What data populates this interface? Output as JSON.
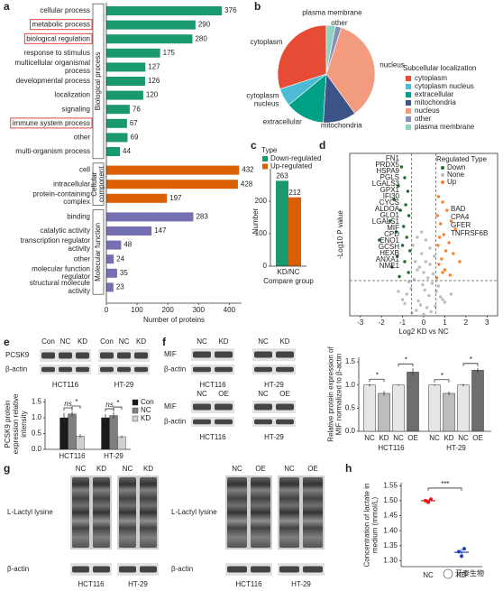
{
  "panels": [
    "a",
    "b",
    "c",
    "d",
    "e",
    "f",
    "g",
    "h"
  ],
  "chart_data": [
    {
      "type": "hbar",
      "xlabel": "Number of proteins",
      "xlim": [
        0,
        440
      ],
      "xticks": [
        0,
        100,
        200,
        300,
        400
      ],
      "groups": [
        {
          "name": "Biological process",
          "color": "#1a9a6c",
          "categories": [
            "cellular process",
            "metabolic process",
            "biological regulation",
            "response to stimulus",
            "multicellular organismal\nprocess",
            "developmental process",
            "localization",
            "signaling",
            "immune system process",
            "other",
            "multi-organism process"
          ],
          "values": [
            376,
            290,
            280,
            175,
            127,
            126,
            120,
            76,
            67,
            69,
            44
          ],
          "highlighted": [
            false,
            true,
            true,
            false,
            false,
            false,
            false,
            false,
            true,
            false,
            false
          ]
        },
        {
          "name": "Cellular\ncomponent",
          "color": "#d95f02",
          "categories": [
            "cell",
            "intracellular",
            "protein-containing\ncomplex"
          ],
          "values": [
            432,
            428,
            197
          ]
        },
        {
          "name": "Molecular function",
          "color": "#7570b3",
          "categories": [
            "binding",
            "catalytic activity",
            "transcription regulator\nactivity",
            "other",
            "molecular function\nregulator",
            "structural molecule\nactivity"
          ],
          "values": [
            283,
            147,
            48,
            24,
            35,
            23
          ]
        }
      ]
    },
    {
      "type": "pie",
      "title": "Subcellular localization",
      "categories": [
        "cytoplasm",
        "cytoplasm nucleus",
        "extracellular",
        "mitochondria",
        "nucleus",
        "other",
        "plasma membrane"
      ],
      "values": [
        30,
        6,
        13,
        11,
        35,
        2,
        3
      ],
      "colors": [
        "#e64b35",
        "#4dbbd5",
        "#00a087",
        "#3c5488",
        "#f39b7f",
        "#8491b4",
        "#91d1c2"
      ]
    },
    {
      "type": "bar",
      "legend_title": "Type",
      "categories": [
        "KD/NC"
      ],
      "xlabel": "Compare group",
      "ylabel": "Number",
      "series": [
        {
          "name": "Down-regulated",
          "color": "#1a9a6c",
          "values": [
            263
          ]
        },
        {
          "name": "Up-regulated",
          "color": "#d95f02",
          "values": [
            212
          ]
        }
      ],
      "ylim": [
        0,
        300
      ],
      "yticks": [
        0,
        100,
        200
      ]
    },
    {
      "type": "scatter",
      "legend_title": "Regulated Type",
      "xlabel": "Log2 KD vs NC",
      "ylabel": "-Log10 P value",
      "xlim": [
        -3.5,
        3.5
      ],
      "xticks": [
        -3,
        -2,
        -1,
        0,
        1,
        2,
        3
      ],
      "ylim": [
        0,
        6
      ],
      "thresholds": {
        "x": [
          -0.58,
          0.58
        ],
        "y": 1.3
      },
      "series": [
        {
          "name": "Down",
          "color": "#1e6b2a",
          "x": [
            -1.05,
            -0.9,
            -1.2,
            -0.75,
            -1.4,
            -0.85,
            -1.1,
            -0.7,
            -1.6,
            -0.95,
            -1.3,
            -0.8,
            -2.1,
            -1.0,
            -0.65,
            -1.25,
            -0.9,
            -1.5,
            -0.72,
            -1.15
          ],
          "values": [
            5.5,
            5.1,
            4.8,
            4.6,
            4.3,
            4.1,
            3.9,
            3.7,
            3.5,
            3.3,
            3.1,
            2.9,
            2.8,
            2.6,
            2.4,
            2.2,
            2.0,
            1.8,
            1.6,
            1.45
          ]
        },
        {
          "name": "None",
          "color": "#bdbdbd",
          "x": [
            -0.5,
            -0.3,
            -0.1,
            0.1,
            0.3,
            0.5,
            -0.4,
            -0.2,
            0,
            0.2,
            0.4,
            -0.6,
            0.6,
            -0.8,
            0.8,
            -1.0,
            1.0,
            -0.15,
            0.15,
            -0.35,
            0.35,
            -0.55,
            0.55,
            -0.25,
            0.25,
            0.05,
            -0.05,
            -0.45,
            0.45,
            -0.7,
            0.7,
            -1.2,
            1.3,
            -0.9,
            0.9,
            0,
            -0.1,
            0.1,
            -0.3,
            0.3
          ],
          "values": [
            2.6,
            2.9,
            3.1,
            2.8,
            2.5,
            2.2,
            2.0,
            1.8,
            1.6,
            1.4,
            1.2,
            1.0,
            0.9,
            0.8,
            0.7,
            0.6,
            0.5,
            0.4,
            0.3,
            0.2,
            0.15,
            0.1,
            0.35,
            0.55,
            0.75,
            0.95,
            1.15,
            1.35,
            1.55,
            1.25,
            1.1,
            0.9,
            0.8,
            0.45,
            0.6,
            0.05,
            2.3,
            2.0,
            1.7,
            1.9
          ]
        },
        {
          "name": "Up",
          "color": "#ff7f2a",
          "x": [
            0.7,
            0.9,
            1.1,
            0.65,
            1.3,
            0.8,
            1.5,
            0.95,
            0.75,
            1.2,
            0.68,
            1.05,
            1.4,
            0.85,
            1.7,
            0.72,
            1.0,
            0.9,
            1.25,
            0.62
          ],
          "values": [
            4.4,
            4.2,
            3.9,
            3.7,
            3.5,
            3.4,
            3.2,
            3.0,
            2.9,
            2.7,
            2.6,
            2.4,
            2.3,
            2.1,
            2.0,
            1.9,
            1.7,
            1.6,
            1.5,
            1.4
          ]
        }
      ],
      "down_labels": [
        "FN1",
        "PRDX5",
        "HSPA9",
        "PGLS",
        "LGALS3",
        "GPX1",
        "IFI30",
        "CYCS",
        "ALDOA",
        "GLO1",
        "LGALS1",
        "MIF",
        "CPD",
        "ENO1",
        "GCSH",
        "HEXB",
        "ANXA1",
        "NME1"
      ],
      "up_labels": [
        "BAD",
        "CPA4",
        "GFER",
        "TNFRSF6B"
      ]
    },
    {
      "type": "grouped-bar",
      "categories": [
        "HCT116",
        "HT-29"
      ],
      "ylabel": "PCSK9 protein\nexpression relative\nintensity",
      "series": [
        {
          "name": "Con",
          "color": "#1a1a1a",
          "values": [
            1.0,
            1.0
          ],
          "errors": [
            0.15,
            0.12
          ]
        },
        {
          "name": "NC",
          "color": "#7f7f7f",
          "values": [
            1.12,
            1.07
          ],
          "errors": [
            0.08,
            0.1
          ]
        },
        {
          "name": "KD",
          "color": "#d0d0d0",
          "values": [
            0.42,
            0.4
          ],
          "errors": [
            0.06,
            0.04
          ]
        }
      ],
      "annotations": [
        [
          "ns",
          "*"
        ],
        [
          "ns",
          "*"
        ]
      ],
      "ylim": [
        0,
        1.6
      ],
      "yticks": [
        {
          "value": 0,
          "label": "0.0"
        },
        0.5,
        {
          "value": 1,
          "label": "1.0"
        },
        1.5
      ]
    },
    {
      "type": "bar",
      "categories": [
        "NC",
        "KD",
        "NC",
        "OE",
        "NC",
        "KD",
        "NC",
        "OE"
      ],
      "groups": [
        "HCT116",
        "HT-29"
      ],
      "values": [
        1.0,
        0.82,
        1.0,
        1.28,
        1.0,
        0.82,
        1.0,
        1.32
      ],
      "errors": [
        0.03,
        0.05,
        0.02,
        0.08,
        0.02,
        0.04,
        0.03,
        0.05
      ],
      "colors": [
        "#e6e6e6",
        "#bdbdbd",
        "#e6e6e6",
        "#6e6e6e",
        "#e6e6e6",
        "#bdbdbd",
        "#e6e6e6",
        "#6e6e6e"
      ],
      "annotations": [
        "*",
        "*",
        "*",
        "*"
      ],
      "ylabel": "Relative protein expression of\nMIF normalized to β-actin",
      "ylim": [
        0,
        1.6
      ],
      "yticks": [
        {
          "value": 0,
          "label": "0.0"
        },
        0.5,
        {
          "value": 1,
          "label": "1.0"
        },
        1.5
      ]
    },
    {
      "type": "dot",
      "categories": [
        "NC",
        "KD"
      ],
      "colors": [
        "#e41a1c",
        "#1f3fbf"
      ],
      "values": [
        [
          1.5,
          1.495,
          1.505
        ],
        [
          1.33,
          1.315,
          1.34
        ]
      ],
      "means": [
        1.5,
        1.328
      ],
      "errors": [
        0.005,
        0.012
      ],
      "annotation": "***",
      "ylabel": "Concentration of lactate in\nmedium (mmol/L)",
      "ylim": [
        1.28,
        1.56
      ],
      "yticks": [
        {
          "value": 1.3,
          "label": "1.30"
        },
        1.35,
        {
          "value": 1.4,
          "label": "1.40"
        },
        1.45,
        {
          "value": 1.5,
          "label": "1.50"
        },
        1.55
      ]
    }
  ],
  "blots": {
    "e": {
      "lanes": [
        "Con",
        "NC",
        "KD",
        "Con",
        "NC",
        "KD"
      ],
      "rows": [
        "PCSK9",
        "β-actin"
      ],
      "cells": [
        "HCT116",
        "HT-29"
      ]
    },
    "f1": {
      "lanes": [
        "NC",
        "KD",
        "NC",
        "KD"
      ],
      "rows": [
        "MIF",
        "β-actin"
      ],
      "cells": [
        "HCT116",
        "HT-29"
      ]
    },
    "f2": {
      "lanes": [
        "NC",
        "OE",
        "NC",
        "OE"
      ],
      "rows": [
        "MIF",
        "β-actin"
      ],
      "cells": [
        "HCT116",
        "HT-29"
      ]
    },
    "g1": {
      "lanes": [
        "NC",
        "KD",
        "NC",
        "KD"
      ],
      "rows": [
        "L-Lactyl lysine",
        "β-actin"
      ],
      "cells": [
        "HCT116",
        "HT-29"
      ]
    },
    "g2": {
      "lanes": [
        "NC",
        "OE",
        "NC",
        "OE"
      ],
      "rows": [
        "L-Lactyl lysine",
        "β-actin"
      ],
      "cells": [
        "HCT116",
        "HT-29"
      ]
    }
  },
  "watermark": "开泰生物"
}
